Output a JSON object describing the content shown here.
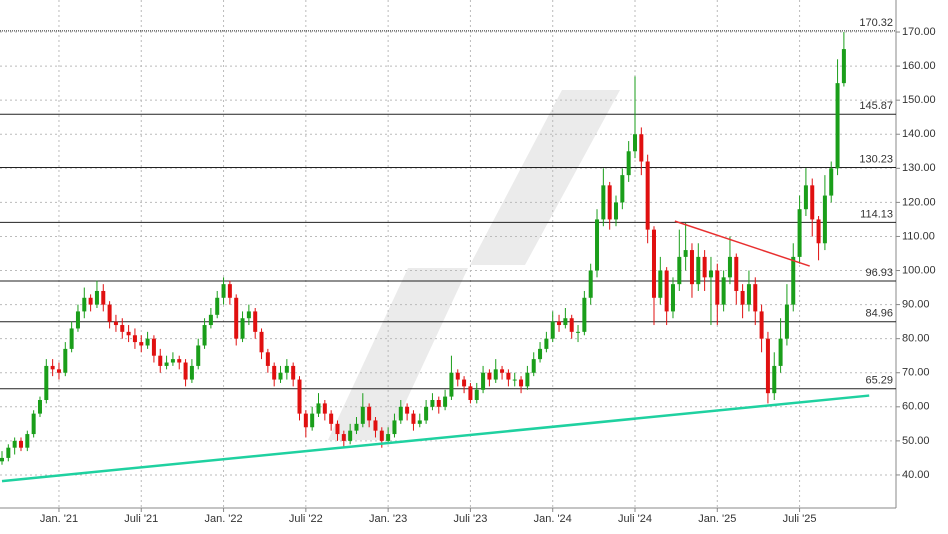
{
  "chart_data": {
    "type": "candlestick",
    "categories": [
      null,
      null,
      null,
      null,
      null,
      null,
      null,
      null,
      null,
      "Jan. '21",
      null,
      null,
      null,
      null,
      null,
      null,
      null,
      null,
      null,
      null,
      null,
      null,
      "Juli '21",
      null,
      null,
      null,
      null,
      null,
      null,
      null,
      null,
      null,
      null,
      null,
      null,
      "Jan. '22",
      null,
      null,
      null,
      null,
      null,
      null,
      null,
      null,
      null,
      null,
      null,
      null,
      "Juli '22",
      null,
      null,
      null,
      null,
      null,
      null,
      null,
      null,
      null,
      null,
      null,
      null,
      "Jan. '23",
      null,
      null,
      null,
      null,
      null,
      null,
      null,
      null,
      null,
      null,
      null,
      null,
      "Juli '23",
      null,
      null,
      null,
      null,
      null,
      null,
      null,
      null,
      null,
      null,
      null,
      null,
      "Jan. '24",
      null,
      null,
      null,
      null,
      null,
      null,
      null,
      null,
      null,
      null,
      null,
      null,
      "Juli '24",
      null,
      null,
      null,
      null,
      null,
      null,
      null,
      null,
      null,
      null,
      null,
      null,
      "Jan. '25",
      null,
      null,
      null,
      null,
      null,
      null,
      null,
      null,
      null,
      null,
      null,
      null,
      "Juli '25",
      null,
      null,
      null,
      null,
      null,
      null,
      null
    ],
    "ohlc": [
      [
        44,
        47,
        43,
        45
      ],
      [
        45,
        49,
        44,
        48
      ],
      [
        48,
        51,
        46,
        50
      ],
      [
        50,
        51,
        47,
        48
      ],
      [
        48,
        53,
        47,
        52
      ],
      [
        52,
        59,
        51,
        58
      ],
      [
        58,
        63,
        57,
        62
      ],
      [
        62,
        74,
        61,
        72
      ],
      [
        72,
        74,
        69,
        71
      ],
      [
        71,
        73,
        68,
        70
      ],
      [
        70,
        79,
        69,
        77
      ],
      [
        77,
        85,
        76,
        83
      ],
      [
        83,
        90,
        82,
        88
      ],
      [
        88,
        95,
        86,
        92
      ],
      [
        92,
        93,
        88,
        90
      ],
      [
        90,
        97,
        89,
        94
      ],
      [
        94,
        96,
        88,
        90
      ],
      [
        90,
        91,
        83,
        85
      ],
      [
        85,
        87,
        82,
        84
      ],
      [
        84,
        86,
        80,
        82
      ],
      [
        82,
        84,
        79,
        81
      ],
      [
        81,
        83,
        77,
        79
      ],
      [
        79,
        81,
        76,
        78
      ],
      [
        78,
        82,
        77,
        80
      ],
      [
        80,
        81,
        73,
        75
      ],
      [
        75,
        77,
        70,
        72
      ],
      [
        72,
        75,
        71,
        73
      ],
      [
        73,
        76,
        72,
        74
      ],
      [
        74,
        75,
        71,
        73
      ],
      [
        73,
        74,
        66,
        68
      ],
      [
        68,
        74,
        67,
        72
      ],
      [
        72,
        80,
        71,
        78
      ],
      [
        78,
        86,
        77,
        84
      ],
      [
        84,
        89,
        83,
        87
      ],
      [
        87,
        94,
        86,
        92
      ],
      [
        92,
        98,
        90,
        96
      ],
      [
        96,
        97,
        90,
        92
      ],
      [
        92,
        93,
        78,
        80
      ],
      [
        80,
        88,
        79,
        86
      ],
      [
        86,
        90,
        84,
        88
      ],
      [
        88,
        89,
        80,
        82
      ],
      [
        82,
        83,
        74,
        76
      ],
      [
        76,
        77,
        70,
        72
      ],
      [
        72,
        73,
        66,
        68
      ],
      [
        68,
        72,
        67,
        70
      ],
      [
        70,
        74,
        68,
        72
      ],
      [
        72,
        73,
        66,
        68
      ],
      [
        68,
        69,
        56,
        58
      ],
      [
        58,
        59,
        51,
        54
      ],
      [
        54,
        60,
        53,
        58
      ],
      [
        58,
        64,
        57,
        61
      ],
      [
        61,
        62,
        56,
        58
      ],
      [
        58,
        59,
        53,
        55
      ],
      [
        55,
        56,
        50,
        52
      ],
      [
        52,
        53,
        48,
        50
      ],
      [
        50,
        55,
        49,
        53
      ],
      [
        53,
        57,
        52,
        55
      ],
      [
        55,
        64,
        54,
        60
      ],
      [
        60,
        61,
        54,
        56
      ],
      [
        56,
        57,
        51,
        53
      ],
      [
        53,
        54,
        48,
        50
      ],
      [
        50,
        54,
        49,
        52
      ],
      [
        52,
        58,
        51,
        56
      ],
      [
        56,
        62,
        55,
        60
      ],
      [
        60,
        61,
        56,
        58
      ],
      [
        58,
        59,
        53,
        55
      ],
      [
        55,
        58,
        54,
        56
      ],
      [
        56,
        62,
        55,
        60
      ],
      [
        60,
        64,
        59,
        62
      ],
      [
        62,
        63,
        58,
        60
      ],
      [
        60,
        65,
        59,
        63
      ],
      [
        63,
        75,
        62,
        70
      ],
      [
        70,
        71,
        66,
        68
      ],
      [
        68,
        69,
        64,
        66
      ],
      [
        66,
        67,
        61,
        62
      ],
      [
        62,
        67,
        61,
        65
      ],
      [
        65,
        72,
        64,
        70
      ],
      [
        70,
        71,
        66,
        68
      ],
      [
        68,
        74,
        67,
        71
      ],
      [
        71,
        72,
        68,
        70
      ],
      [
        70,
        71,
        66,
        68
      ],
      [
        68,
        70,
        66,
        68
      ],
      [
        68,
        69,
        64,
        66
      ],
      [
        66,
        72,
        65,
        70
      ],
      [
        70,
        76,
        69,
        74
      ],
      [
        74,
        79,
        73,
        77
      ],
      [
        77,
        82,
        76,
        80
      ],
      [
        80,
        88,
        79,
        85
      ],
      [
        85,
        87,
        82,
        84
      ],
      [
        84,
        89,
        83,
        86
      ],
      [
        86,
        87,
        80,
        82
      ],
      [
        82,
        84,
        79,
        82
      ],
      [
        82,
        94,
        81,
        92
      ],
      [
        92,
        102,
        90,
        100
      ],
      [
        100,
        118,
        98,
        115
      ],
      [
        115,
        130,
        113,
        125
      ],
      [
        125,
        126,
        112,
        115
      ],
      [
        115,
        122,
        113,
        120
      ],
      [
        120,
        130,
        118,
        128
      ],
      [
        128,
        138,
        126,
        135
      ],
      [
        135,
        157,
        133,
        140
      ],
      [
        140,
        142,
        128,
        132
      ],
      [
        132,
        134,
        108,
        112
      ],
      [
        112,
        113,
        84,
        92
      ],
      [
        92,
        104,
        90,
        100
      ],
      [
        100,
        101,
        84,
        88
      ],
      [
        88,
        98,
        86,
        96
      ],
      [
        96,
        112,
        94,
        104
      ],
      [
        104,
        114,
        100,
        106
      ],
      [
        106,
        108,
        92,
        96
      ],
      [
        96,
        108,
        94,
        104
      ],
      [
        104,
        106,
        94,
        98
      ],
      [
        98,
        104,
        84,
        100
      ],
      [
        100,
        102,
        84,
        90
      ],
      [
        90,
        100,
        88,
        98
      ],
      [
        98,
        110,
        96,
        104
      ],
      [
        104,
        105,
        90,
        94
      ],
      [
        94,
        96,
        86,
        90
      ],
      [
        90,
        100,
        88,
        96
      ],
      [
        96,
        98,
        84,
        88
      ],
      [
        88,
        90,
        76,
        80
      ],
      [
        80,
        82,
        61,
        64
      ],
      [
        64,
        76,
        62,
        72
      ],
      [
        72,
        86,
        70,
        80
      ],
      [
        80,
        96,
        78,
        90
      ],
      [
        90,
        108,
        88,
        104
      ],
      [
        104,
        122,
        102,
        118
      ],
      [
        118,
        130,
        116,
        125
      ],
      [
        125,
        127,
        110,
        115
      ],
      [
        115,
        116,
        103,
        108
      ],
      [
        108,
        128,
        106,
        122
      ],
      [
        122,
        132,
        120,
        130
      ],
      [
        130,
        162,
        128,
        155
      ],
      [
        155,
        170,
        154,
        165
      ]
    ],
    "up_color": "#1a9e1a",
    "down_color": "#e01010",
    "levels": [
      170.32,
      145.87,
      130.23,
      114.13,
      96.93,
      84.96,
      65.29
    ],
    "trendlines": [
      {
        "color": "#1fd1a0",
        "x": [
          0,
          137
        ],
        "values": [
          38.2,
          63.3
        ]
      },
      {
        "color": "#e83030",
        "x": [
          106.3,
          127.6
        ],
        "values": [
          114.5,
          101.3
        ]
      }
    ],
    "ylim": [
      30.3,
      179.4
    ],
    "yticks": [
      {
        "value": 40,
        "label": "40.00"
      },
      {
        "value": 50,
        "label": "50.00"
      },
      {
        "value": 60,
        "label": "60.00"
      },
      {
        "value": 70,
        "label": "70.00"
      },
      {
        "value": 80,
        "label": "80.00"
      },
      {
        "value": 90,
        "label": "90.00"
      },
      {
        "value": 100,
        "label": "100.00"
      },
      {
        "value": 110,
        "label": "110.00"
      },
      {
        "value": 120,
        "label": "120.00"
      },
      {
        "value": 130,
        "label": "130.00"
      },
      {
        "value": 140,
        "label": "140.00"
      },
      {
        "value": 150,
        "label": "150.00"
      },
      {
        "value": 160,
        "label": "160.00"
      },
      {
        "value": 170,
        "label": "170.00"
      }
    ],
    "grid": true
  }
}
